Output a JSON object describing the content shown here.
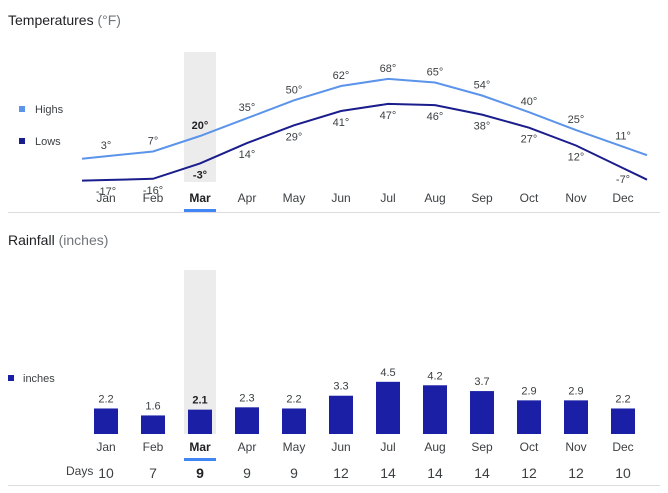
{
  "temperatures": {
    "title": "Temperatures",
    "unit": "(°F)",
    "legend": {
      "highs": "Highs",
      "lows": "Lows"
    },
    "colors": {
      "highs": "#5b94ea",
      "lows": "#1a1d8c"
    }
  },
  "rainfall": {
    "title": "Rainfall",
    "unit": "(inches)",
    "legend": "inches",
    "color": "#1a1fa6",
    "days_label": "Days"
  },
  "selected_month": "Mar",
  "chart_data": [
    {
      "type": "line",
      "title": "Temperatures (°F)",
      "categories": [
        "Jan",
        "Feb",
        "Mar",
        "Apr",
        "May",
        "Jun",
        "Jul",
        "Aug",
        "Sep",
        "Oct",
        "Nov",
        "Dec"
      ],
      "series": [
        {
          "name": "Highs",
          "values": [
            3,
            7,
            20,
            35,
            50,
            62,
            68,
            65,
            54,
            40,
            25,
            11
          ]
        },
        {
          "name": "Lows",
          "values": [
            -17,
            -16,
            -3,
            14,
            29,
            41,
            47,
            46,
            38,
            27,
            12,
            -7
          ]
        }
      ],
      "value_suffix": "°",
      "legend_position": "left",
      "grid": false
    },
    {
      "type": "bar",
      "title": "Rainfall (inches)",
      "categories": [
        "Jan",
        "Feb",
        "Mar",
        "Apr",
        "May",
        "Jun",
        "Jul",
        "Aug",
        "Sep",
        "Oct",
        "Nov",
        "Dec"
      ],
      "series": [
        {
          "name": "inches",
          "values": [
            2.2,
            1.6,
            2.1,
            2.3,
            2.2,
            3.3,
            4.5,
            4.2,
            3.7,
            2.9,
            2.9,
            2.2
          ]
        }
      ],
      "days": [
        10,
        7,
        9,
        9,
        9,
        12,
        14,
        14,
        14,
        12,
        12,
        10
      ],
      "legend_position": "left",
      "grid": false
    }
  ]
}
